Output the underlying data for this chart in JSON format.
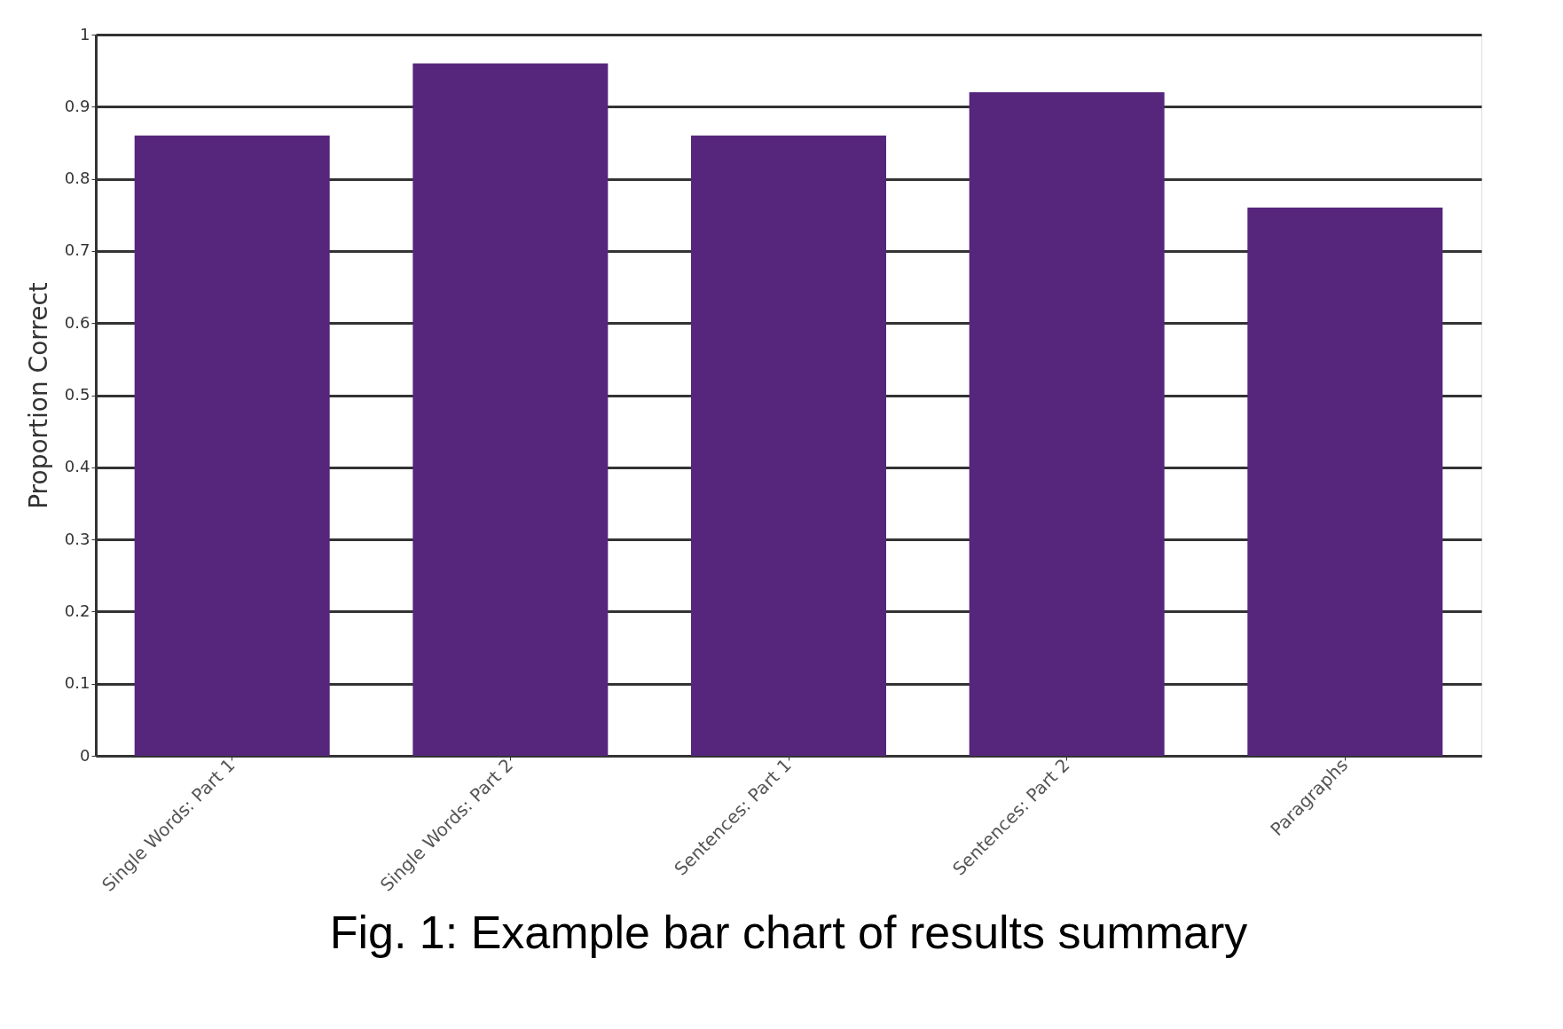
{
  "chart_data": {
    "type": "bar",
    "ylabel": "Proportion Correct",
    "categories": [
      "Single Words: Part 1",
      "Single Words: Part 2",
      "Sentences: Part 1",
      "Sentences: Part 2",
      "Paragraphs"
    ],
    "values": [
      0.86,
      0.96,
      0.86,
      0.92,
      0.76
    ],
    "color": "#56267d",
    "ylim": [
      0,
      1
    ],
    "yticks": [
      0,
      0.1,
      0.2,
      0.3,
      0.4,
      0.5,
      0.6,
      0.7,
      0.8,
      0.9,
      1
    ],
    "grid": "y",
    "annotations": [
      "Fig. 1: Example bar chart of results summary"
    ]
  }
}
